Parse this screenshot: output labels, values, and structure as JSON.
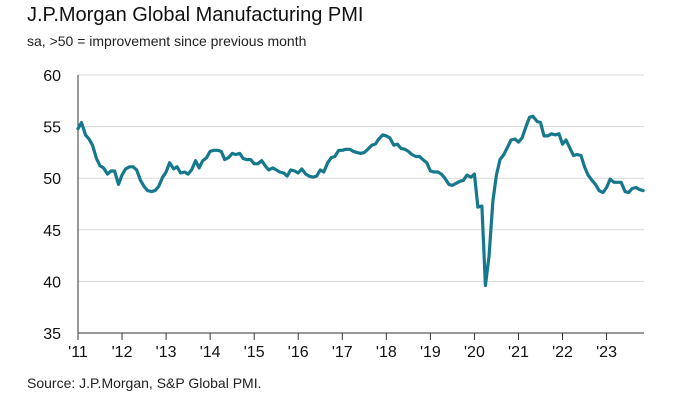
{
  "chart_data": {
    "type": "line",
    "title": "J.P.Morgan Global Manufacturing PMI",
    "subtitle": "sa, >50 = improvement since previous month",
    "source": "Source: J.P.Morgan, S&P Global PMI.",
    "xlabel": "",
    "ylabel": "",
    "ylim": [
      35,
      60
    ],
    "yticks": [
      35,
      40,
      45,
      50,
      55,
      60
    ],
    "xlim": [
      2011.0,
      2023.85
    ],
    "xticks": [
      {
        "value": 2011,
        "label": "'11"
      },
      {
        "value": 2012,
        "label": "'12"
      },
      {
        "value": 2013,
        "label": "'13"
      },
      {
        "value": 2014,
        "label": "'14"
      },
      {
        "value": 2015,
        "label": "'15"
      },
      {
        "value": 2016,
        "label": "'16"
      },
      {
        "value": 2017,
        "label": "'17"
      },
      {
        "value": 2018,
        "label": "'18"
      },
      {
        "value": 2019,
        "label": "'19"
      },
      {
        "value": 2020,
        "label": "'20"
      },
      {
        "value": 2021,
        "label": "'21"
      },
      {
        "value": 2022,
        "label": "'22"
      },
      {
        "value": 2023,
        "label": "'23"
      }
    ],
    "grid": true,
    "series": [
      {
        "name": "J.P.Morgan Global Manufacturing PMI",
        "color": "#16788c",
        "x": [
          2011.0,
          2011.08,
          2011.17,
          2011.25,
          2011.33,
          2011.42,
          2011.5,
          2011.58,
          2011.67,
          2011.75,
          2011.83,
          2011.92,
          2012.0,
          2012.08,
          2012.17,
          2012.25,
          2012.33,
          2012.42,
          2012.5,
          2012.58,
          2012.67,
          2012.75,
          2012.83,
          2012.92,
          2013.0,
          2013.08,
          2013.17,
          2013.25,
          2013.33,
          2013.42,
          2013.5,
          2013.58,
          2013.67,
          2013.75,
          2013.83,
          2013.92,
          2014.0,
          2014.08,
          2014.17,
          2014.25,
          2014.33,
          2014.42,
          2014.5,
          2014.58,
          2014.67,
          2014.75,
          2014.83,
          2014.92,
          2015.0,
          2015.08,
          2015.17,
          2015.25,
          2015.33,
          2015.42,
          2015.5,
          2015.58,
          2015.67,
          2015.75,
          2015.83,
          2015.92,
          2016.0,
          2016.08,
          2016.17,
          2016.25,
          2016.33,
          2016.42,
          2016.5,
          2016.58,
          2016.67,
          2016.75,
          2016.83,
          2016.92,
          2017.0,
          2017.08,
          2017.17,
          2017.25,
          2017.33,
          2017.42,
          2017.5,
          2017.58,
          2017.67,
          2017.75,
          2017.83,
          2017.92,
          2018.0,
          2018.08,
          2018.17,
          2018.25,
          2018.33,
          2018.42,
          2018.5,
          2018.58,
          2018.67,
          2018.75,
          2018.83,
          2018.92,
          2019.0,
          2019.08,
          2019.17,
          2019.25,
          2019.33,
          2019.42,
          2019.5,
          2019.58,
          2019.67,
          2019.75,
          2019.83,
          2019.92,
          2020.0,
          2020.08,
          2020.17,
          2020.25,
          2020.33,
          2020.42,
          2020.5,
          2020.58,
          2020.67,
          2020.75,
          2020.83,
          2020.92,
          2021.0,
          2021.08,
          2021.17,
          2021.25,
          2021.33,
          2021.42,
          2021.5,
          2021.58,
          2021.67,
          2021.75,
          2021.83,
          2021.92,
          2022.0,
          2022.08,
          2022.17,
          2022.25,
          2022.33,
          2022.42,
          2022.5,
          2022.58,
          2022.67,
          2022.75,
          2022.83,
          2022.92,
          2023.0,
          2023.08,
          2023.17,
          2023.25,
          2023.33,
          2023.42,
          2023.5,
          2023.58,
          2023.67,
          2023.75,
          2023.83
        ],
        "values": [
          54.8,
          55.4,
          54.2,
          53.8,
          53.2,
          51.9,
          51.2,
          51.0,
          50.4,
          50.7,
          50.7,
          49.4,
          50.3,
          50.9,
          51.1,
          51.1,
          50.8,
          49.8,
          49.2,
          48.8,
          48.7,
          48.8,
          49.2,
          50.1,
          50.6,
          51.5,
          50.9,
          51.1,
          50.5,
          50.6,
          50.4,
          50.8,
          51.7,
          51.0,
          51.7,
          52.0,
          52.6,
          52.7,
          52.7,
          52.6,
          51.8,
          52.0,
          52.4,
          52.3,
          52.4,
          51.9,
          51.8,
          51.8,
          51.4,
          51.4,
          51.7,
          51.2,
          50.8,
          51.0,
          50.8,
          50.6,
          50.5,
          50.2,
          50.8,
          50.7,
          50.5,
          50.9,
          50.4,
          50.2,
          50.1,
          50.2,
          50.8,
          50.6,
          51.5,
          52.0,
          52.1,
          52.7,
          52.7,
          52.8,
          52.8,
          52.6,
          52.5,
          52.4,
          52.5,
          52.8,
          53.2,
          53.3,
          53.8,
          54.2,
          54.1,
          53.9,
          53.2,
          53.3,
          52.9,
          52.8,
          52.6,
          52.3,
          52.1,
          52.1,
          51.8,
          51.5,
          50.7,
          50.6,
          50.6,
          50.4,
          50.0,
          49.4,
          49.3,
          49.5,
          49.7,
          49.8,
          50.3,
          50.1,
          50.4,
          47.2,
          47.3,
          39.6,
          42.4,
          47.8,
          50.3,
          51.8,
          52.3,
          53.0,
          53.7,
          53.8,
          53.5,
          53.9,
          55.0,
          55.9,
          56.0,
          55.5,
          55.4,
          54.1,
          54.1,
          54.3,
          54.2,
          54.3,
          53.3,
          53.7,
          52.9,
          52.2,
          52.3,
          52.2,
          51.1,
          50.3,
          49.8,
          49.4,
          48.8,
          48.6,
          49.1,
          49.9,
          49.6,
          49.6,
          49.6,
          48.7,
          48.6,
          49.0,
          49.1,
          48.9,
          48.8
        ]
      }
    ]
  }
}
